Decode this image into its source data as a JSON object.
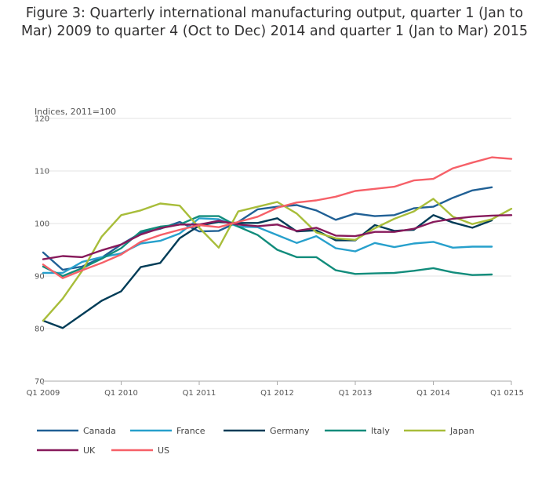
{
  "chart_data": {
    "type": "line",
    "title_lines": [
      "Figure 3: Quarterly international manufacturing output, quarter 1 (Jan to",
      "Mar) 2009 to quarter 4 (Oct to Dec) 2014 and quarter 1 (Jan to Mar) 2015"
    ],
    "ylabel": "Indices, 2011=100",
    "ylim": [
      70,
      120
    ],
    "yticks": [
      70,
      80,
      90,
      100,
      110,
      120
    ],
    "xlim": [
      0,
      24
    ],
    "xticks": [
      {
        "pos": 0,
        "label": "Q1 2009"
      },
      {
        "pos": 4,
        "label": "Q1 2010"
      },
      {
        "pos": 8,
        "label": "Q1 2011"
      },
      {
        "pos": 12,
        "label": "Q1 2012"
      },
      {
        "pos": 16,
        "label": "Q1 2013"
      },
      {
        "pos": 20,
        "label": "Q1 2014"
      },
      {
        "pos": 24,
        "label": "Q1 0215"
      }
    ],
    "legend_position": "bottom",
    "series": [
      {
        "name": "Canada",
        "color": "#206095",
        "values": [
          94.5,
          91.2,
          91.8,
          93.5,
          96.0,
          98.2,
          99.0,
          100.3,
          98.5,
          98.6,
          100.3,
          102.7,
          103.2,
          103.5,
          102.5,
          100.7,
          101.9,
          101.4,
          101.6,
          102.9,
          103.2,
          104.9,
          106.3,
          106.9
        ]
      },
      {
        "name": "France",
        "color": "#27a0cc",
        "values": [
          90.6,
          90.6,
          92.7,
          93.6,
          94.3,
          96.2,
          96.7,
          98.1,
          101.0,
          100.8,
          99.4,
          99.3,
          97.8,
          96.3,
          97.6,
          95.3,
          94.7,
          96.3,
          95.5,
          96.2,
          96.5,
          95.4,
          95.6,
          95.6
        ]
      },
      {
        "name": "Germany",
        "color": "#003c57",
        "values": [
          81.5,
          80.1,
          82.7,
          85.3,
          87.1,
          91.7,
          92.5,
          97.2,
          99.6,
          100.3,
          100.1,
          100.1,
          101.0,
          98.5,
          98.7,
          96.8,
          96.8,
          99.7,
          98.6,
          98.8,
          101.6,
          100.2,
          99.2,
          100.6
        ]
      },
      {
        "name": "Italy",
        "color": "#118c7b",
        "values": [
          91.8,
          90.0,
          91.5,
          93.3,
          95.3,
          98.5,
          99.4,
          99.8,
          101.4,
          101.4,
          99.4,
          97.8,
          95.0,
          93.6,
          93.6,
          91.1,
          90.4,
          90.5,
          90.6,
          91.0,
          91.5,
          90.7,
          90.2,
          90.3
        ]
      },
      {
        "name": "Japan",
        "color": "#a8bd3a",
        "values": [
          81.5,
          85.7,
          91.0,
          97.5,
          101.6,
          102.5,
          103.8,
          103.4,
          99.2,
          95.4,
          102.3,
          103.2,
          104.1,
          101.9,
          98.3,
          97.2,
          96.9,
          99.1,
          100.9,
          102.3,
          104.7,
          101.3,
          99.9,
          100.8,
          102.8
        ]
      },
      {
        "name": "UK",
        "color": "#871a5b",
        "values": [
          93.2,
          93.8,
          93.6,
          94.9,
          96.0,
          97.9,
          99.1,
          99.8,
          99.8,
          100.5,
          99.8,
          99.5,
          99.8,
          98.6,
          99.2,
          97.7,
          97.6,
          98.4,
          98.4,
          99.0,
          100.3,
          100.9,
          101.3,
          101.5,
          101.6
        ]
      },
      {
        "name": "US",
        "color": "#f66068",
        "values": [
          92.2,
          89.6,
          91.1,
          92.5,
          94.1,
          96.5,
          97.8,
          98.8,
          99.7,
          99.3,
          100.3,
          101.3,
          103.0,
          104.0,
          104.4,
          105.1,
          106.2,
          106.6,
          107.0,
          108.2,
          108.5,
          110.5,
          111.6,
          112.6,
          112.3
        ]
      }
    ]
  }
}
